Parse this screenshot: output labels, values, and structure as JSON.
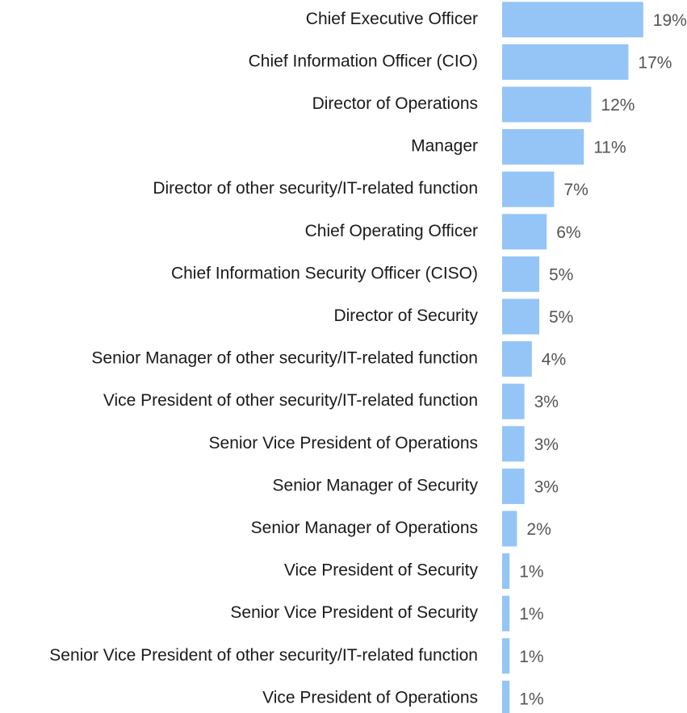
{
  "chart_data": {
    "type": "barh",
    "color": "#94c5f6",
    "categories": [
      "Chief Executive Officer",
      "Chief Information Officer (CIO)",
      "Director of Operations",
      "Manager",
      "Director of other security/IT-related function",
      "Chief Operating Officer",
      "Chief Information Security Officer (CISO)",
      "Director of Security",
      "Senior Manager of other security/IT-related function",
      "Vice President of other security/IT-related function",
      "Senior Vice President of Operations",
      "Senior Manager of Security",
      "Senior Manager of Operations",
      "Vice President of Security",
      "Senior Vice President of Security",
      "Senior Vice President of other security/IT-related function",
      "Vice President of Operations"
    ],
    "values": [
      19,
      17,
      12,
      11,
      7,
      6,
      5,
      5,
      4,
      3,
      3,
      3,
      2,
      1,
      1,
      1,
      1
    ],
    "value_labels": [
      "19%",
      "17%",
      "12%",
      "11%",
      "7%",
      "6%",
      "5%",
      "5%",
      "4%",
      "3%",
      "3%",
      "3%",
      "2%",
      "1%",
      "1%",
      "1%",
      "1%"
    ]
  }
}
